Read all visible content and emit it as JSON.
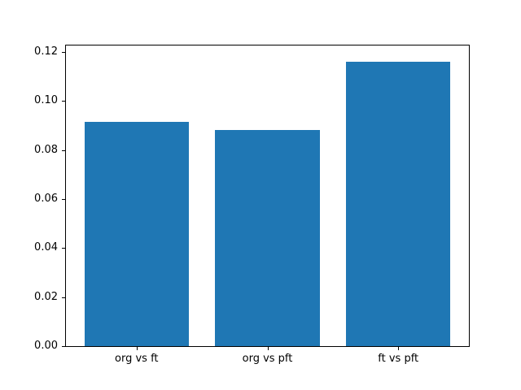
{
  "chart_data": {
    "type": "bar",
    "categories": [
      "org vs ft",
      "org vs pft",
      "ft vs pft"
    ],
    "values": [
      0.0915,
      0.088,
      0.116
    ],
    "title": "",
    "xlabel": "",
    "ylabel": "",
    "ylim": [
      0,
      0.1226
    ],
    "xlim": [
      -0.54,
      2.54
    ],
    "bar_width": 0.8,
    "yticks": [
      {
        "value": 0.0,
        "label": "0.00"
      },
      {
        "value": 0.02,
        "label": "0.02"
      },
      {
        "value": 0.04,
        "label": "0.04"
      },
      {
        "value": 0.06,
        "label": "0.06"
      },
      {
        "value": 0.08,
        "label": "0.08"
      },
      {
        "value": 0.1,
        "label": "0.10"
      },
      {
        "value": 0.12,
        "label": "0.12"
      }
    ],
    "bar_color": "#1f77b4",
    "grid": false,
    "legend": false,
    "spine_color": "#000000",
    "background_color": "#ffffff"
  }
}
